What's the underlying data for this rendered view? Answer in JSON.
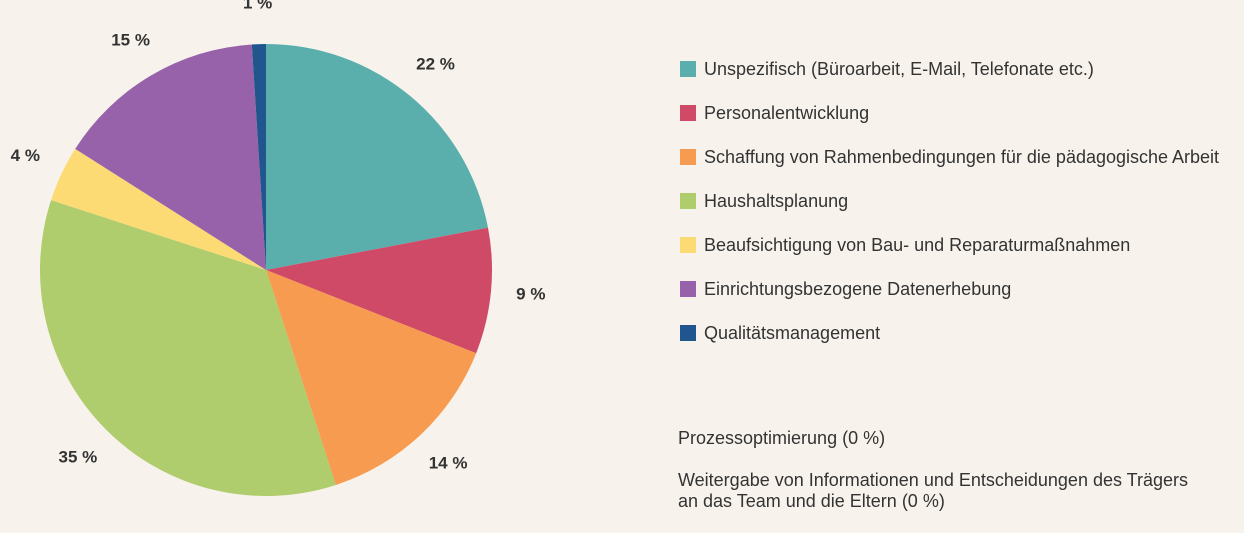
{
  "chart_data": {
    "type": "pie",
    "categories": [
      "Unspezifisch (Büroarbeit, E-Mail, Telefonate etc.)",
      "Personalentwicklung",
      "Schaffung von Rahmenbedingungen für die pädagogische Arbeit",
      "Haushaltsplanung",
      "Beaufsichtigung von Bau- und Reparaturmaßnahmen",
      "Einrichtungsbezogene Datenerhebung",
      "Qualitätsmanagement"
    ],
    "values": [
      22,
      9,
      14,
      35,
      4,
      15,
      1
    ],
    "value_labels": [
      "22 %",
      "9 %",
      "14 %",
      "35 %",
      "4 %",
      "15 %",
      "1 %"
    ],
    "colors": [
      "#5aafad",
      "#cf4a67",
      "#f79b50",
      "#afcd6c",
      "#fddb74",
      "#9862aa",
      "#21558e"
    ],
    "notes": [
      "Prozessoptimierung (0 %)",
      "Weitergabe von Informationen und Entscheidungen des Trägers an das Team und die Eltern (0 %)"
    ]
  }
}
